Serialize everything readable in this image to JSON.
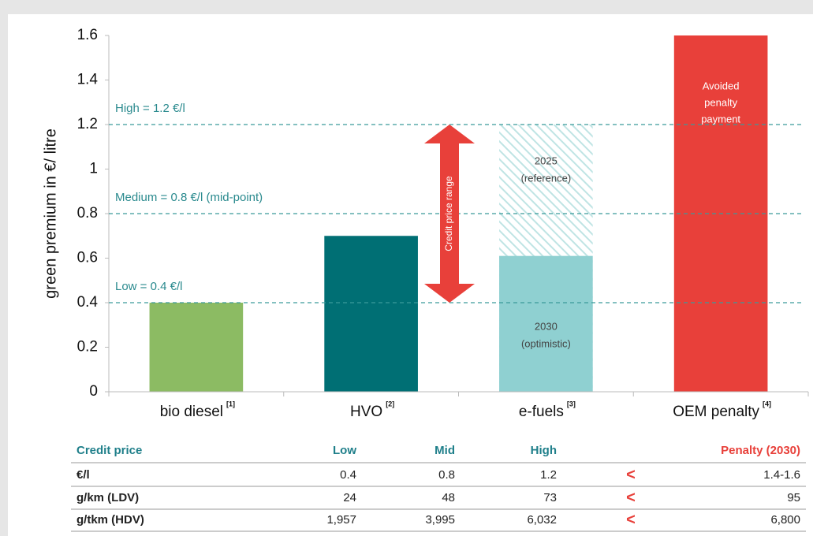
{
  "chart_data": {
    "type": "bar",
    "ylabel": "green premium in €/ litre",
    "categories": [
      "bio diesel",
      "HVO",
      "e-fuels",
      "OEM penalty"
    ],
    "category_notes": [
      "[1]",
      "[2]",
      "[3]",
      "[4]"
    ],
    "values": [
      0.4,
      0.7,
      0.61,
      1.6
    ],
    "colors": [
      "#8cbb63",
      "#006f74",
      "#8fd0d1",
      "#e8403a"
    ],
    "reference_values": [
      null,
      null,
      1.2,
      null
    ],
    "ylim": [
      0,
      1.6
    ],
    "yticks": [
      0,
      0.2,
      0.4,
      0.6,
      0.8,
      1,
      1.2,
      1.4,
      1.6
    ],
    "ref_lines": [
      {
        "value": 1.2,
        "label": "High = 1.2 €/l"
      },
      {
        "value": 0.8,
        "label": "Medium = 0.8 €/l (mid-point)"
      },
      {
        "value": 0.4,
        "label": "Low = 0.4 €/l"
      }
    ],
    "arrow": {
      "label": "Credit price range",
      "from": 0.4,
      "to": 1.2
    },
    "annotations": [
      "2025",
      "(reference)",
      "2030",
      "(optimistic)",
      "Avoided",
      "penalty",
      "payment"
    ]
  },
  "table": {
    "header": [
      "Credit price",
      "Low",
      "Mid",
      "High",
      "Penalty (2030)"
    ],
    "rows": [
      [
        "€/l",
        "0.4",
        "0.8",
        "1.2",
        "<",
        "1.4-1.6"
      ],
      [
        "g/km (LDV)",
        "24",
        "48",
        "73",
        "<",
        "95"
      ],
      [
        "g/tkm (HDV)",
        "1,957",
        "3,995",
        "6,032",
        "<",
        "6,800"
      ]
    ]
  }
}
